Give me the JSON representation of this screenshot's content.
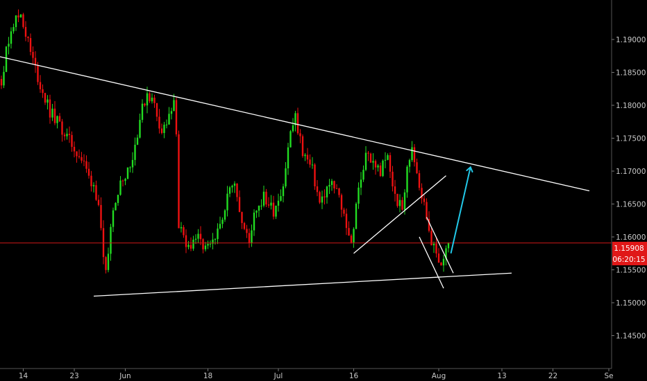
{
  "chart_data": {
    "type": "candlestick",
    "title": "",
    "xlabel": "",
    "ylabel": "",
    "ylim": [
      1.14,
      1.196
    ],
    "grid": false,
    "x_ticks": [
      "14",
      "23",
      "Jun",
      "18",
      "Jul",
      "16",
      "Aug",
      "13",
      "22",
      "Se"
    ],
    "y_ticks": [
      "1.19000",
      "1.18500",
      "1.18000",
      "1.17500",
      "1.17000",
      "1.16500",
      "1.16000",
      "1.15500",
      "1.15000",
      "1.14500"
    ],
    "last_price": {
      "value": 1.15908,
      "label": "1.15908",
      "countdown": "06:20:15"
    },
    "colors": {
      "up": "#22dd22",
      "down": "#ee1111",
      "background": "#000000",
      "price_line": "#d01818",
      "annotation": "#ffffff",
      "projection_arrow": "#22c8e8"
    },
    "waypoints": [
      [
        0,
        1.184
      ],
      [
        4,
        1.192
      ],
      [
        8,
        1.194
      ],
      [
        12,
        1.188
      ],
      [
        16,
        1.183
      ],
      [
        20,
        1.179
      ],
      [
        24,
        1.177
      ],
      [
        28,
        1.1745
      ],
      [
        31,
        1.173
      ],
      [
        34,
        1.171
      ],
      [
        36,
        1.169
      ],
      [
        38,
        1.168
      ],
      [
        40,
        1.165
      ],
      [
        42,
        1.156
      ],
      [
        43,
        1.154
      ],
      [
        46,
        1.165
      ],
      [
        50,
        1.169
      ],
      [
        54,
        1.172
      ],
      [
        57,
        1.178
      ],
      [
        60,
        1.182
      ],
      [
        63,
        1.18
      ],
      [
        66,
        1.176
      ],
      [
        69,
        1.178
      ],
      [
        71,
        1.18
      ],
      [
        72,
        1.176
      ],
      [
        73,
        1.162
      ],
      [
        76,
        1.158
      ],
      [
        80,
        1.16
      ],
      [
        84,
        1.158
      ],
      [
        88,
        1.159
      ],
      [
        92,
        1.165
      ],
      [
        96,
        1.169
      ],
      [
        99,
        1.162
      ],
      [
        102,
        1.159
      ],
      [
        104,
        1.164
      ],
      [
        108,
        1.166
      ],
      [
        112,
        1.164
      ],
      [
        116,
        1.168
      ],
      [
        119,
        1.176
      ],
      [
        121,
        1.178
      ],
      [
        124,
        1.173
      ],
      [
        128,
        1.17
      ],
      [
        131,
        1.165
      ],
      [
        135,
        1.168
      ],
      [
        138,
        1.167
      ],
      [
        142,
        1.162
      ],
      [
        144,
        1.159
      ],
      [
        147,
        1.167
      ],
      [
        150,
        1.173
      ],
      [
        153,
        1.171
      ],
      [
        156,
        1.17
      ],
      [
        159,
        1.172
      ],
      [
        162,
        1.166
      ],
      [
        165,
        1.164
      ],
      [
        167,
        1.17
      ],
      [
        169,
        1.174
      ],
      [
        172,
        1.168
      ],
      [
        175,
        1.163
      ],
      [
        178,
        1.158
      ],
      [
        181,
        1.156
      ],
      [
        184,
        1.159
      ]
    ],
    "annotations": [
      {
        "type": "trendline",
        "name": "upper-trendline",
        "from": [
          -2,
          1.1875
        ],
        "to": [
          242,
          1.167
        ]
      },
      {
        "type": "trendline",
        "name": "lower-trendline",
        "from": [
          38,
          1.151
        ],
        "to": [
          210,
          1.1545
        ]
      },
      {
        "type": "trendline",
        "name": "rising-channel-line",
        "from": [
          145,
          1.1575
        ],
        "to": [
          183,
          1.1693
        ]
      },
      {
        "type": "trendline",
        "name": "falling-wedge-upper",
        "from": [
          175,
          1.163
        ],
        "to": [
          186,
          1.1545
        ]
      },
      {
        "type": "trendline",
        "name": "falling-wedge-lower",
        "from": [
          172,
          1.16
        ],
        "to": [
          182,
          1.1522
        ]
      },
      {
        "type": "arrow",
        "name": "projection-arrow",
        "from": [
          185,
          1.1575
        ],
        "to": [
          193,
          1.1705
        ]
      }
    ]
  }
}
